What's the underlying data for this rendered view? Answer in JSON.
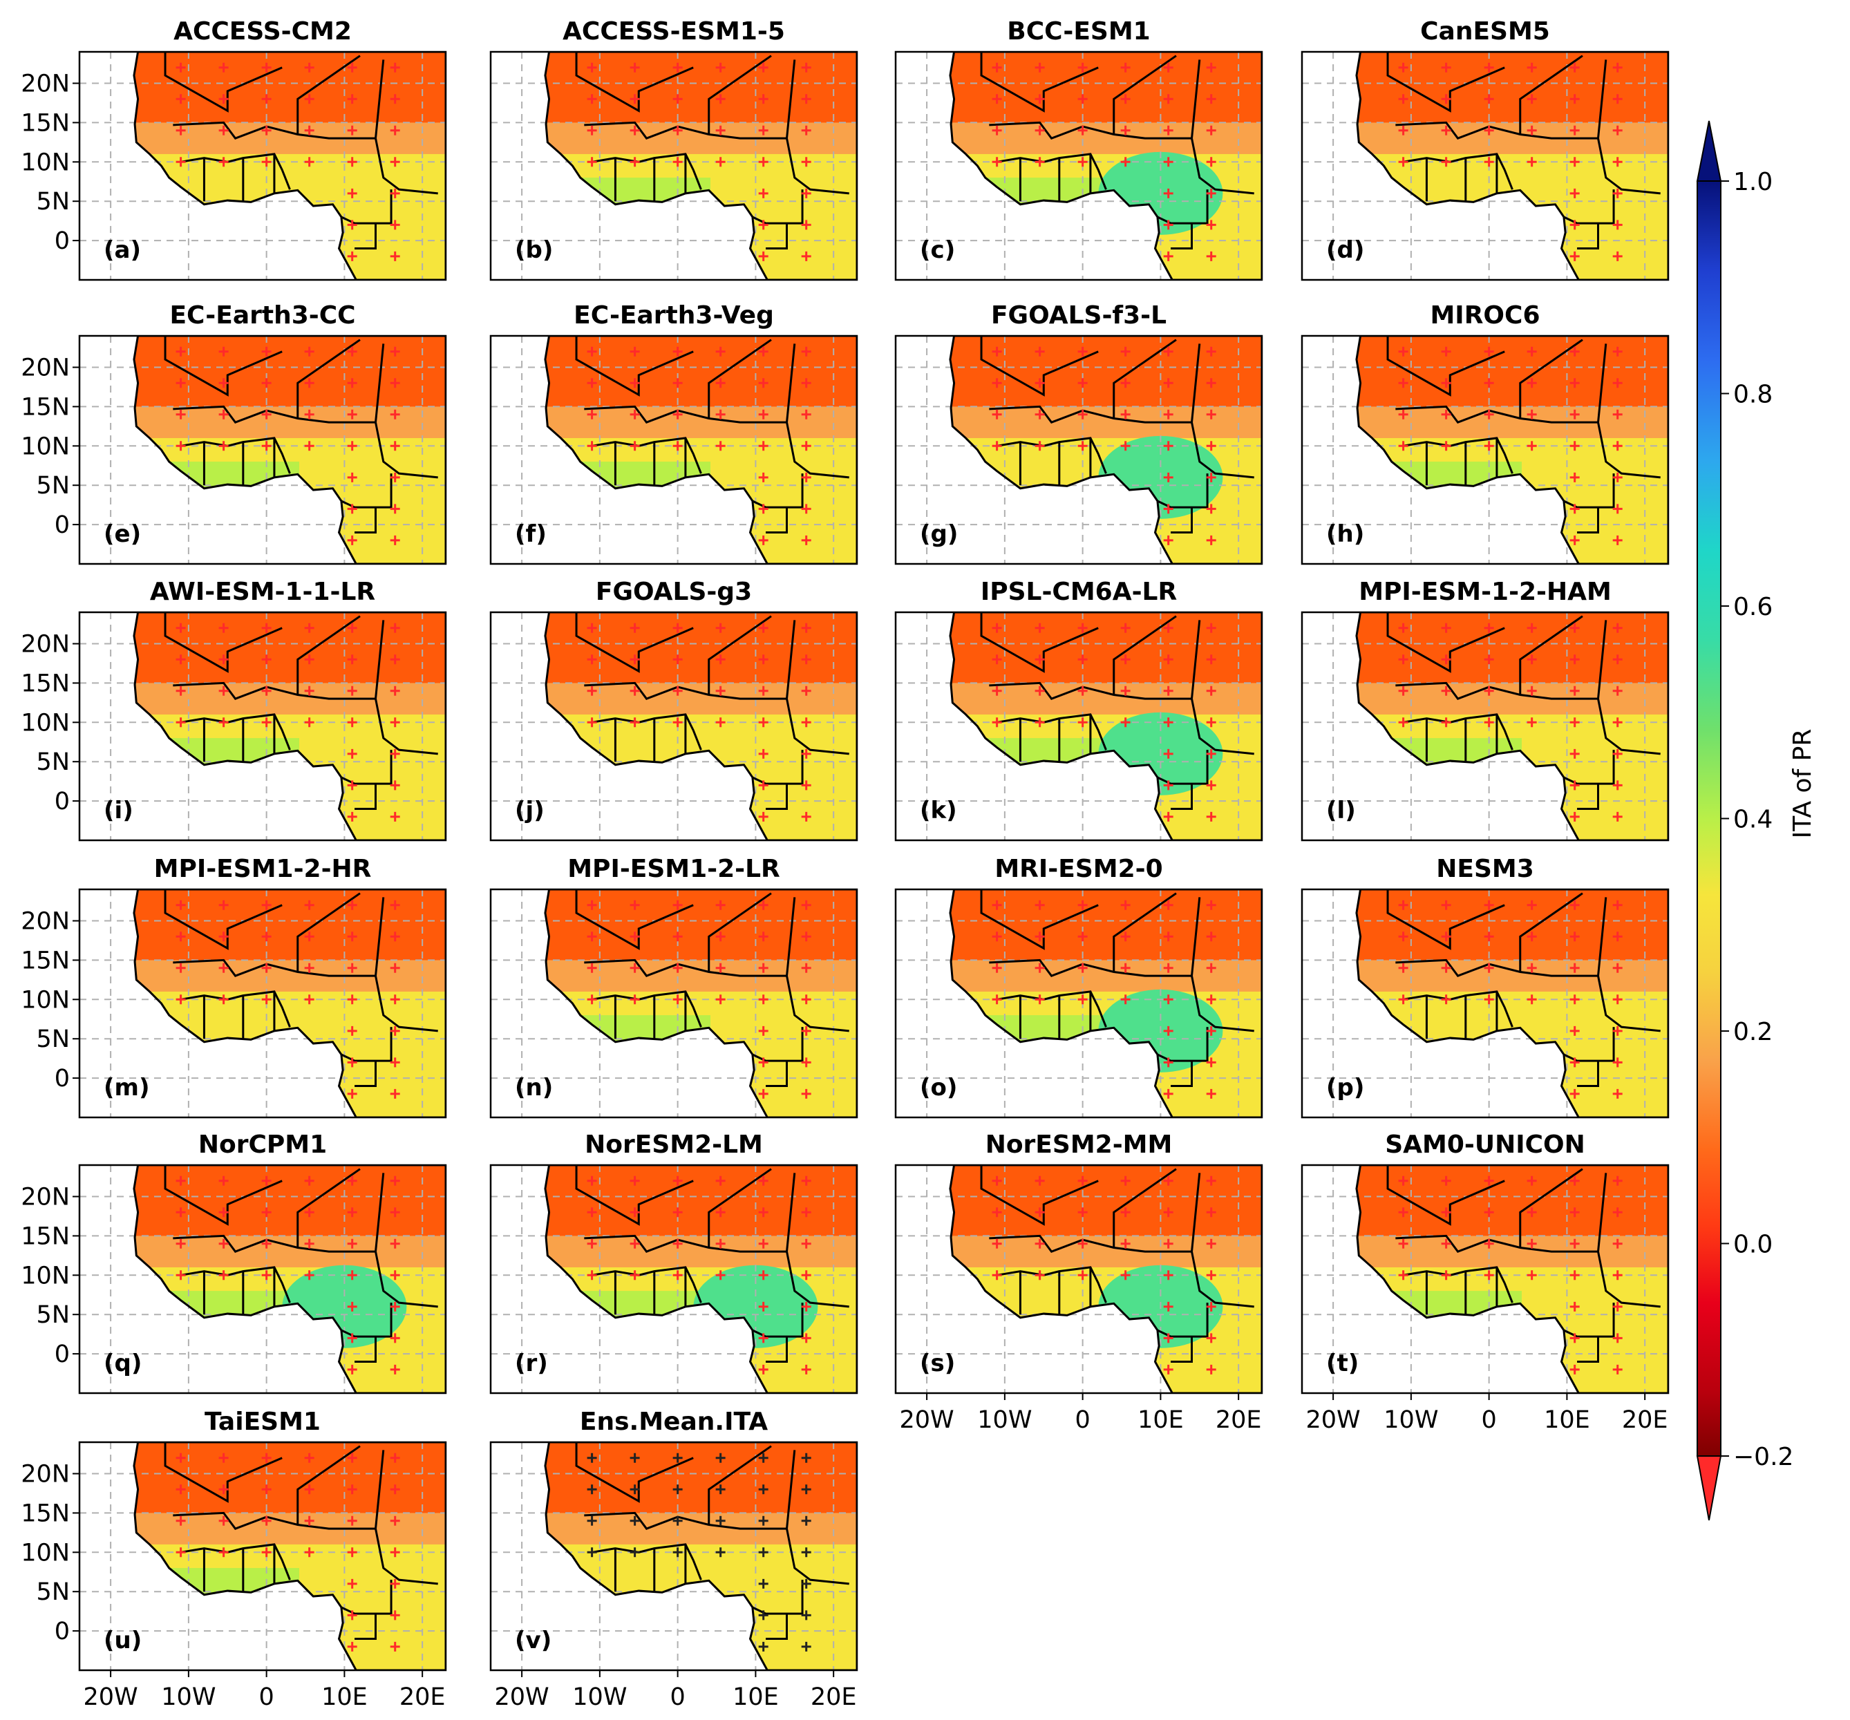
{
  "panels": [
    {
      "title": "ACCESS-CM2",
      "label": "(a)"
    },
    {
      "title": "ACCESS-ESM1-5",
      "label": "(b)"
    },
    {
      "title": "BCC-ESM1",
      "label": "(c)"
    },
    {
      "title": "CanESM5",
      "label": "(d)"
    },
    {
      "title": "EC-Earth3-CC",
      "label": "(e)"
    },
    {
      "title": "EC-Earth3-Veg",
      "label": "(f)"
    },
    {
      "title": "FGOALS-f3-L",
      "label": "(g)"
    },
    {
      "title": "MIROC6",
      "label": "(h)"
    },
    {
      "title": "AWI-ESM-1-1-LR",
      "label": "(i)"
    },
    {
      "title": "FGOALS-g3",
      "label": "(j)"
    },
    {
      "title": "IPSL-CM6A-LR",
      "label": "(k)"
    },
    {
      "title": "MPI-ESM-1-2-HAM",
      "label": "(l)"
    },
    {
      "title": "MPI-ESM1-2-HR",
      "label": "(m)"
    },
    {
      "title": "MPI-ESM1-2-LR",
      "label": "(n)"
    },
    {
      "title": "MRI-ESM2-0",
      "label": "(o)"
    },
    {
      "title": "NESM3",
      "label": "(p)"
    },
    {
      "title": "NorCPM1",
      "label": "(q)"
    },
    {
      "title": "NorESM2-LM",
      "label": "(r)"
    },
    {
      "title": "NorESM2-MM",
      "label": "(s)"
    },
    {
      "title": "SAM0-UNICON",
      "label": "(t)"
    },
    {
      "title": "TaiESM1",
      "label": "(u)"
    },
    {
      "title": "Ens.Mean.ITA",
      "label": "(v)"
    }
  ],
  "lat_ticks": [
    "20N",
    "15N",
    "10N",
    "5N",
    "0"
  ],
  "lon_ticks": [
    "20W",
    "10W",
    "0",
    "10E",
    "20E"
  ],
  "colorbar": {
    "label": "ITA of PR",
    "ticks": [
      "1.0",
      "0.8",
      "0.6",
      "0.4",
      "0.2",
      "0.0",
      "−0.2"
    ],
    "colors": [
      "#7f0000",
      "#e8001a",
      "#ff5a0a",
      "#f9a24a",
      "#f6e53c",
      "#b9ef48",
      "#4fe08c",
      "#1fd6c8",
      "#2d8cf0",
      "#1f3fd0",
      "#06117a"
    ]
  }
}
